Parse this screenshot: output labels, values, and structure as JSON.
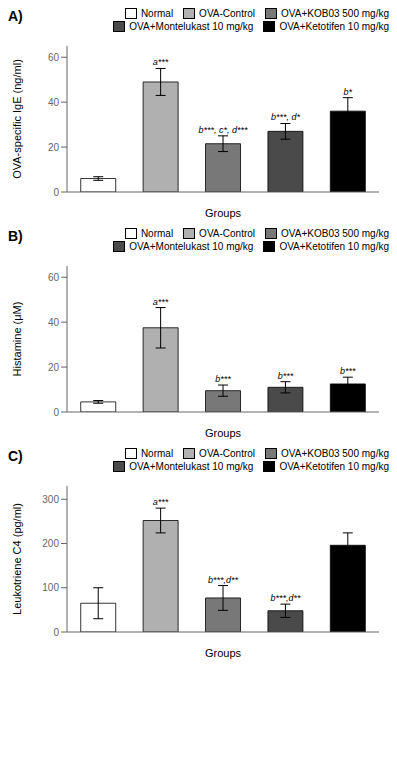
{
  "chart_data": [
    {
      "type": "bar",
      "title": "A)",
      "xlabel": "Groups",
      "ylabel": "OVA-specific IgE (ng/ml)",
      "categories": [
        "Normal",
        "OVA-Control",
        "OVA+KOB03 500 mg/kg",
        "OVA+Montelukast 10 mg/kg",
        "OVA+Ketotifen 10 mg/kg"
      ],
      "values": [
        6,
        49,
        21.5,
        27,
        36
      ],
      "errors": [
        0.8,
        6,
        3.5,
        3.5,
        6
      ],
      "annotations": [
        null,
        "a***",
        "b***, c*, d***",
        "b***, d*",
        "b*"
      ],
      "colors": [
        "#ffffff",
        "#b0b0b0",
        "#787878",
        "#4a4a4a",
        "#000000"
      ],
      "ylim": [
        0,
        65
      ],
      "yticks": [
        0,
        20,
        40,
        60
      ],
      "tick_labels": "y",
      "legend": "upper right"
    },
    {
      "type": "bar",
      "title": "B)",
      "xlabel": "Groups",
      "ylabel": "Histamine (μM)",
      "categories": [
        "Normal",
        "OVA-Control",
        "OVA+KOB03 500 mg/kg",
        "OVA+Montelukast 10 mg/kg",
        "OVA+Ketotifen 10 mg/kg"
      ],
      "values": [
        4.5,
        37.5,
        9.5,
        11,
        12.5
      ],
      "errors": [
        0.6,
        9,
        2.5,
        2.5,
        3
      ],
      "annotations": [
        null,
        "a***",
        "b***",
        "b***",
        "b***"
      ],
      "colors": [
        "#ffffff",
        "#b0b0b0",
        "#787878",
        "#4a4a4a",
        "#000000"
      ],
      "ylim": [
        0,
        65
      ],
      "yticks": [
        0,
        20,
        40,
        60
      ],
      "tick_labels": "y",
      "legend": "upper right"
    },
    {
      "type": "bar",
      "title": "C)",
      "xlabel": "Groups",
      "ylabel": "Leukotriene C4 (pg/ml)",
      "categories": [
        "Normal",
        "OVA-Control",
        "OVA+KOB03 500 mg/kg",
        "OVA+Montelukast 10 mg/kg",
        "OVA+Ketotifen 10 mg/kg"
      ],
      "values": [
        65,
        252,
        77,
        48,
        196
      ],
      "errors": [
        35,
        28,
        28,
        15,
        28
      ],
      "annotations": [
        null,
        "a***",
        "b***,d**",
        "b***,d**",
        null
      ],
      "colors": [
        "#ffffff",
        "#b0b0b0",
        "#787878",
        "#4a4a4a",
        "#000000"
      ],
      "ylim": [
        0,
        330
      ],
      "yticks": [
        0,
        100,
        200,
        300
      ],
      "tick_labels": "y",
      "legend": "upper right"
    }
  ]
}
